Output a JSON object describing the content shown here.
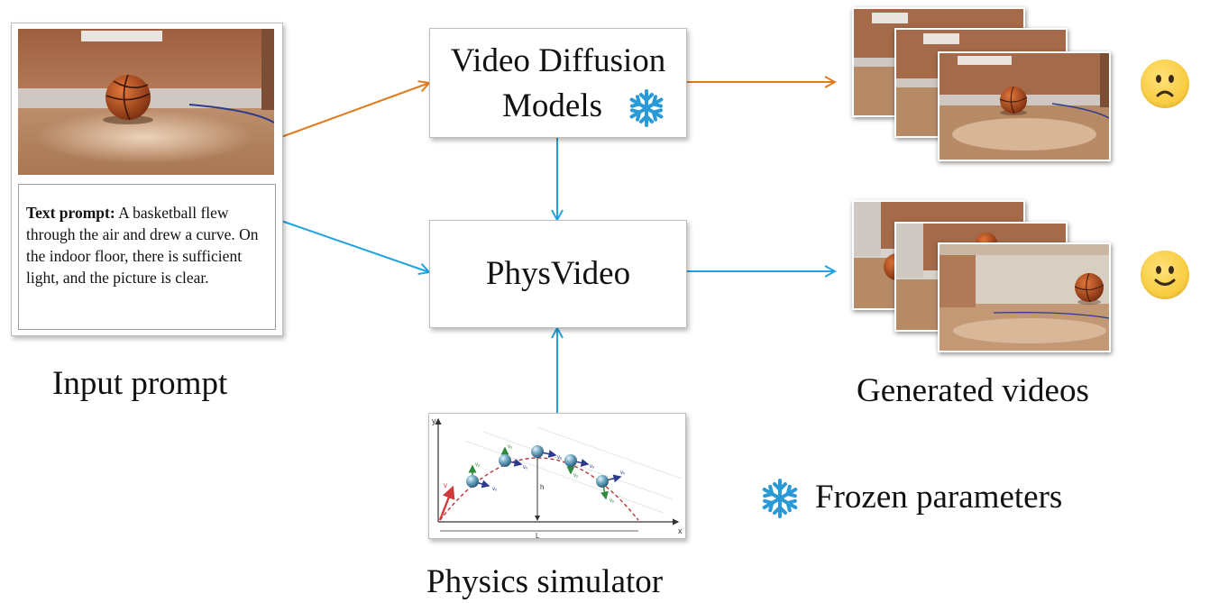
{
  "input_caption": "Input prompt",
  "text_prompt_label": "Text prompt:",
  "text_prompt_body": " A basketball flew through the air and drew a curve. On the indoor floor, there is sufficient light, and the picture is clear.",
  "vdm_line1": "Video Diffusion",
  "vdm_line2": "Models",
  "physvideo_label": "PhysVideo",
  "simulator_caption": "Physics simulator",
  "generated_caption": "Generated videos",
  "legend_frozen": "Frozen parameters",
  "simulator_axes": {
    "x": "x",
    "y": "y",
    "h": "h",
    "L": "L"
  },
  "simulator_vectors": {
    "v0": "v",
    "vx": "vₓ",
    "vy": "vᵧ"
  },
  "colors": {
    "orange_arrow": "#e07a1f",
    "blue_arrow": "#1fa3e3",
    "snowflake": "#2a9ad6",
    "floor": "#b98a62",
    "wall": "#a86e4c",
    "ball": "#b8521f"
  },
  "icons": [
    "snowflake-icon",
    "sad-face-icon",
    "smile-face-icon",
    "basketball-icon"
  ]
}
